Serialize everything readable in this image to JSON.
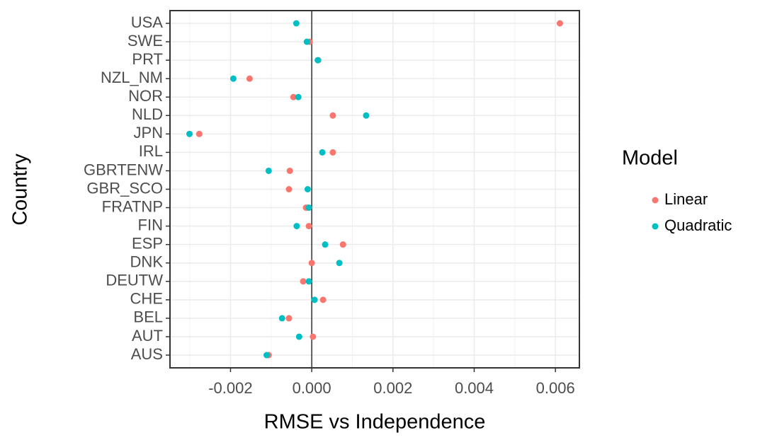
{
  "chart_data": {
    "type": "dot",
    "x_label": "RMSE vs Independence",
    "y_label": "Country",
    "legend_title": "Model",
    "categories": [
      "USA",
      "SWE",
      "PRT",
      "NZL_NM",
      "NOR",
      "NLD",
      "JPN",
      "IRL",
      "GBRTENW",
      "GBR_SCO",
      "FRATNP",
      "FIN",
      "ESP",
      "DNK",
      "DEUTW",
      "CHE",
      "BEL",
      "AUT",
      "AUS"
    ],
    "series": [
      {
        "name": "Linear",
        "color": "#f8766d",
        "values": [
          0.00611,
          -5e-05,
          0.00016,
          -0.00153,
          -0.00045,
          0.00052,
          -0.00277,
          0.00052,
          -0.00054,
          -0.00056,
          -0.00014,
          -7e-05,
          0.00077,
          0.0,
          -0.00021,
          0.00028,
          -0.00056,
          3e-05,
          -0.00106
        ]
      },
      {
        "name": "Quadratic",
        "color": "#00bfc4",
        "values": [
          -0.00038,
          -0.00012,
          0.00015,
          -0.00193,
          -0.00033,
          0.00134,
          -0.00301,
          0.00026,
          -0.00106,
          -0.0001,
          -7e-05,
          -0.00037,
          0.00033,
          0.00068,
          -7e-05,
          7e-05,
          -0.00073,
          -0.00031,
          -0.00111
        ]
      }
    ],
    "xlim": [
      -0.00349,
      0.00659
    ],
    "xticks": [
      -0.002,
      {
        "value": 0,
        "label": "0.000"
      },
      0.002,
      0.004,
      0.006
    ],
    "reference_line": 0,
    "grid": true
  }
}
